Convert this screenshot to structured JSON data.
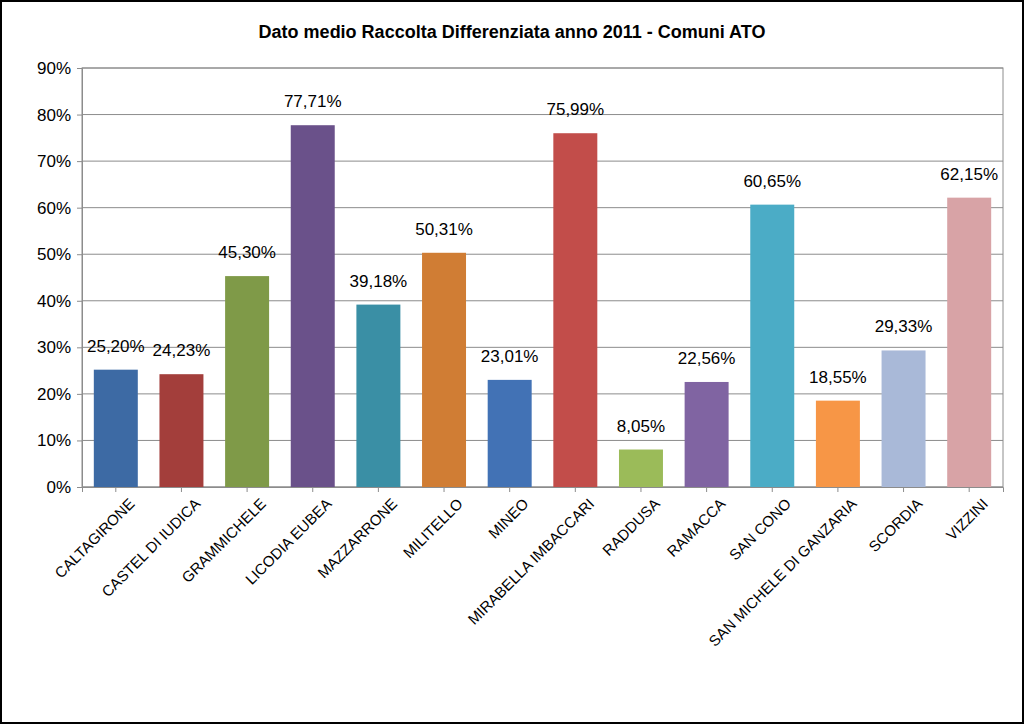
{
  "chart_data": {
    "type": "bar",
    "title": "Dato medio Raccolta Differenziata anno 2011 - Comuni ATO",
    "categories": [
      "CALTAGIRONE",
      "CASTEL DI IUDICA",
      "GRAMMICHELE",
      "LICODIA EUBEA",
      "MAZZARRONE",
      "MILITELLO",
      "MINEO",
      "MIRABELLA IMBACCARI",
      "RADDUSA",
      "RAMACCA",
      "SAN CONO",
      "SAN MICHELE DI GANZARIA",
      "SCORDIA",
      "VIZZINI"
    ],
    "values": [
      25.2,
      24.23,
      45.3,
      77.71,
      39.18,
      50.31,
      23.01,
      75.99,
      8.05,
      22.56,
      60.65,
      18.55,
      29.33,
      62.15
    ],
    "value_labels": [
      "25,20%",
      "24,23%",
      "45,30%",
      "77,71%",
      "39,18%",
      "50,31%",
      "23,01%",
      "75,99%",
      "8,05%",
      "22,56%",
      "60,65%",
      "18,55%",
      "29,33%",
      "62,15%"
    ],
    "colors": [
      "#3d6aa4",
      "#a33e3b",
      "#7f9a48",
      "#6a518a",
      "#3a8fa5",
      "#d07d34",
      "#4272b5",
      "#c24d4a",
      "#9bbb59",
      "#8064a2",
      "#4bacc6",
      "#f79646",
      "#a9b9d8",
      "#d8a3a6"
    ],
    "ylim": [
      0,
      90
    ],
    "yticks": [
      {
        "value": 0,
        "label": "0%"
      },
      {
        "value": 10,
        "label": "10%"
      },
      {
        "value": 20,
        "label": "20%"
      },
      {
        "value": 30,
        "label": "30%"
      },
      {
        "value": 40,
        "label": "40%"
      },
      {
        "value": 50,
        "label": "50%"
      },
      {
        "value": 60,
        "label": "60%"
      },
      {
        "value": 70,
        "label": "70%"
      },
      {
        "value": 80,
        "label": "80%"
      },
      {
        "value": 90,
        "label": "90%"
      }
    ],
    "grid": true,
    "data_labels": true
  }
}
